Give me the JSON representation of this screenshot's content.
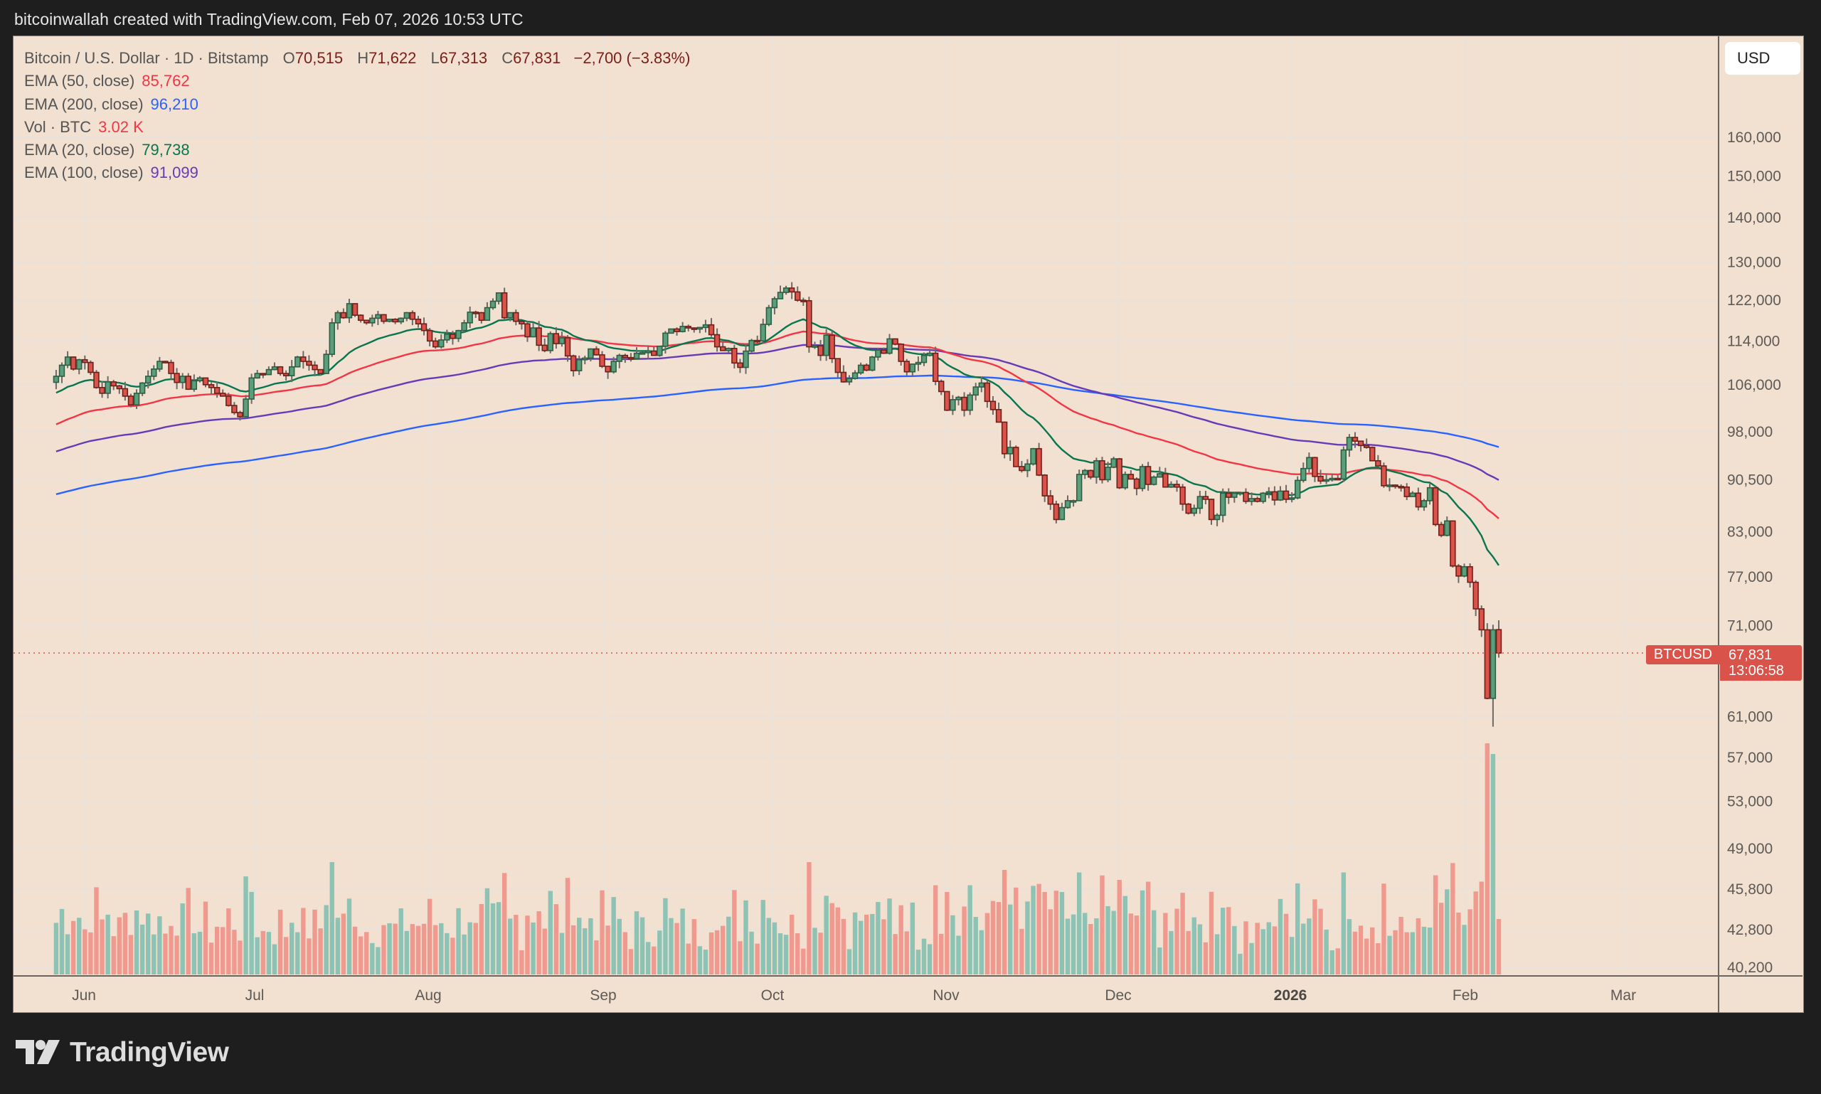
{
  "header": {
    "caption": "bitcoinwallah created with TradingView.com, Feb 07, 2026 10:53 UTC"
  },
  "legend": {
    "symbol": "Bitcoin / U.S. Dollar · 1D · Bitstamp",
    "ohlc": {
      "o_label": "O",
      "o": "70,515",
      "h_label": "H",
      "h": "71,622",
      "l_label": "L",
      "l": "67,313",
      "c_label": "C",
      "c": "67,831",
      "change": "−2,700 (−3.83%)"
    },
    "indicators": [
      {
        "label": "EMA (50, close)",
        "value": "85,762",
        "color": "#f23645"
      },
      {
        "label": "EMA (200, close)",
        "value": "96,210",
        "color": "#2962ff"
      },
      {
        "label": "Vol · BTC",
        "value": "3.02 K",
        "color": "#f23645"
      },
      {
        "label": "EMA (20, close)",
        "value": "79,738",
        "color": "#08754f"
      },
      {
        "label": "EMA (100, close)",
        "value": "91,099",
        "color": "#673ab7"
      }
    ]
  },
  "currency_button": "USD",
  "price_tag": {
    "symbol": "BTCUSD",
    "price": "67,831",
    "countdown": "13:06:58",
    "color": "#d9534a"
  },
  "footer": {
    "brand": "TradingView"
  },
  "colors": {
    "up": "#5a9e7c",
    "down": "#d9534a",
    "vol_up": "#8cc3b4",
    "vol_down": "#f09a8f",
    "bg": "#f2e0d0",
    "grid": "#e9e2dc"
  },
  "chart_data": {
    "type": "candlestick",
    "title": "Bitcoin / U.S. Dollar · 1D · Bitstamp",
    "xlabel": "",
    "ylabel": "USD",
    "y_scale": "log",
    "ylim": [
      40200,
      165000
    ],
    "y_ticks": [
      160000,
      150000,
      140000,
      130000,
      122000,
      114000,
      106000,
      98000,
      90500,
      83000,
      77000,
      71000,
      61000,
      57000,
      53000,
      49000,
      45800,
      42800,
      40200
    ],
    "y_tick_labels": [
      "160,000",
      "150,000",
      "140,000",
      "130,000",
      "122,000",
      "114,000",
      "106,000",
      "98,000",
      "90,500",
      "83,000",
      "77,000",
      "71,000",
      "61,000",
      "57,000",
      "53,000",
      "49,000",
      "45,800",
      "42,800",
      "40,200"
    ],
    "x_ticks": [
      {
        "label": "Jun",
        "x": 118,
        "bold": false
      },
      {
        "label": "Jul",
        "x": 358,
        "bold": false
      },
      {
        "label": "Aug",
        "x": 602,
        "bold": false
      },
      {
        "label": "Sep",
        "x": 848,
        "bold": false
      },
      {
        "label": "Oct",
        "x": 1086,
        "bold": false
      },
      {
        "label": "Nov",
        "x": 1330,
        "bold": false
      },
      {
        "label": "Dec",
        "x": 1572,
        "bold": false
      },
      {
        "label": "2026",
        "x": 1814,
        "bold": true
      },
      {
        "label": "Feb",
        "x": 2060,
        "bold": false
      },
      {
        "label": "Mar",
        "x": 2282,
        "bold": false
      }
    ],
    "last": {
      "open": 70515,
      "high": 71622,
      "low": 67313,
      "close": 67831,
      "change": -2700,
      "change_pct": -3.83
    },
    "closes": [
      107500,
      109500,
      111000,
      108800,
      110500,
      110000,
      108200,
      105500,
      104500,
      106500,
      105800,
      105300,
      104000,
      102500,
      104500,
      106300,
      107500,
      108800,
      110200,
      110000,
      108000,
      106400,
      107500,
      105200,
      106700,
      107200,
      106000,
      105500,
      104500,
      104000,
      102400,
      101200,
      100500,
      103500,
      107200,
      108000,
      107800,
      108700,
      109200,
      108000,
      107600,
      109200,
      111000,
      110200,
      109500,
      108700,
      108000,
      111500,
      117500,
      119500,
      118500,
      121300,
      119000,
      118000,
      117500,
      118400,
      119100,
      117800,
      118200,
      117700,
      118400,
      119500,
      118200,
      117300,
      116000,
      114000,
      112900,
      114200,
      115300,
      114500,
      116000,
      117500,
      119600,
      119500,
      118000,
      120500,
      121800,
      123500,
      118500,
      119500,
      117800,
      117300,
      114800,
      116500,
      113200,
      112200,
      115400,
      113500,
      114600,
      111200,
      108500,
      110500,
      110800,
      112500,
      111400,
      109300,
      108300,
      110200,
      111300,
      110900,
      110700,
      111700,
      111800,
      112100,
      111300,
      113000,
      115500,
      116300,
      115800,
      116800,
      116500,
      116300,
      116600,
      117100,
      115200,
      112900,
      112200,
      112600,
      109900,
      109100,
      112100,
      114100,
      114000,
      117200,
      120500,
      122300,
      123600,
      124500,
      123700,
      122000,
      121900,
      112900,
      113100,
      111300,
      115100,
      110700,
      108200,
      106500,
      107100,
      108100,
      109500,
      108600,
      111000,
      112300,
      111700,
      114400,
      113400,
      110200,
      108300,
      109700,
      110000,
      111300,
      111700,
      106600,
      104800,
      101600,
      103400,
      103800,
      101600,
      104200,
      105600,
      106300,
      103100,
      101700,
      99600,
      94500,
      95500,
      92500,
      91900,
      92900,
      95300,
      91200,
      88100,
      86900,
      84700,
      86400,
      87400,
      87400,
      91300,
      91900,
      90900,
      93400,
      90500,
      92400,
      93700,
      89300,
      91300,
      90600,
      89200,
      92500,
      89800,
      90900,
      91400,
      89400,
      89800,
      89400,
      86900,
      85600,
      86300,
      88000,
      87600,
      84700,
      85300,
      88500,
      87900,
      88500,
      88600,
      87300,
      87700,
      87300,
      88500,
      88700,
      87500,
      88800,
      87600,
      87800,
      90400,
      92200,
      93900,
      91000,
      90300,
      90500,
      90700,
      90600,
      95100,
      97100,
      96500,
      95800,
      95500,
      93400,
      92600,
      89600,
      89700,
      89500,
      89400,
      88000,
      88500,
      86500,
      87400,
      89300,
      84000,
      82500,
      84500,
      78400,
      77100,
      78300,
      76300,
      73000,
      70500,
      62900,
      70500,
      67831
    ],
    "ema_last": {
      "ema20": 79738,
      "ema50": 85762,
      "ema100": 91099,
      "ema200": 96210
    },
    "volume_last": "3.02 K"
  }
}
